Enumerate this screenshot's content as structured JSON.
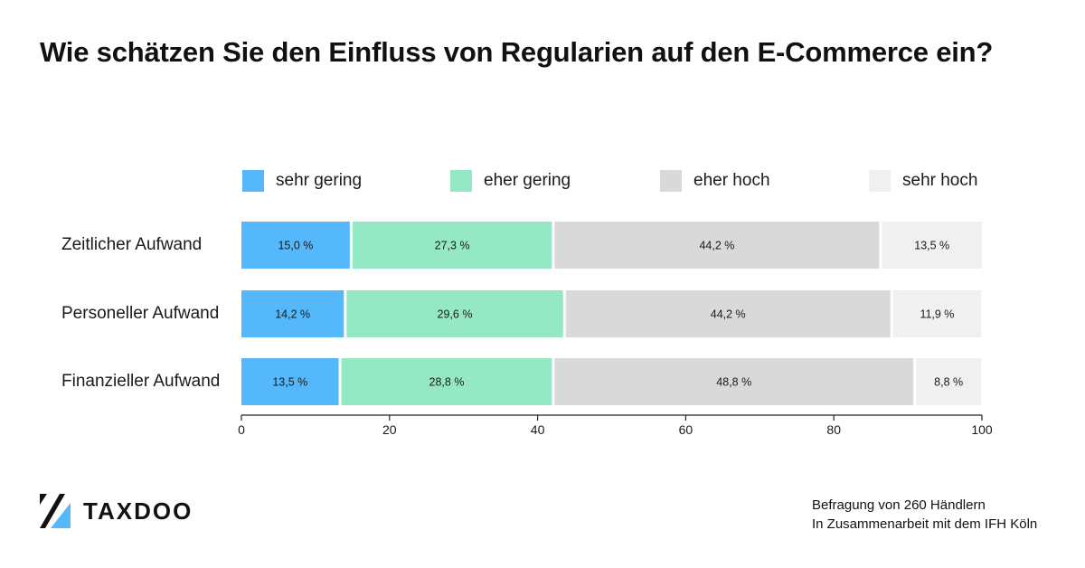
{
  "title": "Wie schätzen Sie den Einfluss von Regularien auf den E-Commerce ein?",
  "chart_data": {
    "type": "bar",
    "orientation": "horizontal",
    "stacked": true,
    "categories": [
      "Zeitlicher Aufwand",
      "Personeller Aufwand",
      "Finanzieller Aufwand"
    ],
    "series": [
      {
        "name": "sehr gering",
        "color": "#55b8fb",
        "values": [
          15.0,
          14.2,
          13.5
        ],
        "labels": [
          "15,0 %",
          "14,2 %",
          "13,5 %"
        ]
      },
      {
        "name": "eher gering",
        "color": "#94e8c4",
        "values": [
          27.3,
          29.6,
          28.8
        ],
        "labels": [
          "27,3 %",
          "29,6 %",
          "28,8 %"
        ]
      },
      {
        "name": "eher hoch",
        "color": "#d9d9d9",
        "values": [
          44.2,
          44.2,
          48.8
        ],
        "labels": [
          "44,2 %",
          "44,2 %",
          "48,8 %"
        ]
      },
      {
        "name": "sehr hoch",
        "color": "#f0f0f0",
        "values": [
          13.5,
          11.9,
          8.8
        ],
        "labels": [
          "13,5 %",
          "11,9 %",
          "8,8 %"
        ]
      }
    ],
    "xlim": [
      0,
      100
    ],
    "xticks": [
      0,
      20,
      40,
      60,
      80,
      100
    ],
    "xtick_labels": [
      "0",
      "20",
      "40",
      "60",
      "80",
      "100"
    ],
    "legend_position": "top",
    "grid": false
  },
  "logo": {
    "text": "TAXDOO",
    "icon": "taxdoo-slash-logo-icon",
    "accent_color": "#55b8fb"
  },
  "footnote": {
    "line1": "Befragung von 260 Händlern",
    "line2": "In Zusammenarbeit mit dem IFH Köln"
  }
}
